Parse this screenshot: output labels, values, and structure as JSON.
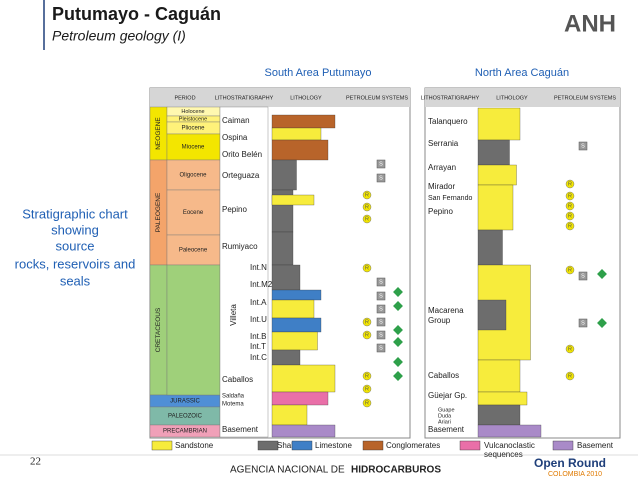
{
  "header": {
    "title": "Putumayo - Caguán",
    "subtitle": "Petroleum geology (I)",
    "logo": "ANH"
  },
  "side_note": [
    "Stratigraphic chart",
    "showing",
    "source",
    "rocks, reservoirs and",
    "seals"
  ],
  "south": {
    "title": "South Area Putumayo",
    "columns": [
      "PERIOD",
      "LITHOSTRATIGRAPHY",
      "LITHOLOGY",
      "PETROLEUM SYSTEMS"
    ],
    "eras": [
      "NEOGENE",
      "PALEOGENE",
      "CRETACEOUS",
      "JURASSIC",
      "PALEOZOIC",
      "PRECAMBRIAN"
    ],
    "epochs": [
      "Holocene",
      "Pleistocene",
      "Pliocene",
      "Miocene",
      "Oligocene",
      "Eocene",
      "Paleocene"
    ],
    "formations": [
      "Caiman",
      "Ospina",
      "Orito Belén",
      "Orteguaza",
      "Pepino",
      "Rumiyaco",
      "Int.N",
      "Int.M2",
      "Int.A",
      "Int.U",
      "Int.B",
      "Int.T",
      "Int.C",
      "Caballos",
      "Saldaña",
      "Motema",
      "Basement"
    ],
    "group": "Villeta",
    "markers": [
      "S",
      "S",
      "R",
      "R",
      "R",
      "R",
      "S",
      "S",
      "S",
      "R",
      "S",
      "R",
      "S",
      "S",
      "R",
      "R",
      "R"
    ]
  },
  "north": {
    "title": "North Area Caguán",
    "columns": [
      "LITHOSTRATIGRAPHY",
      "LITHOLOGY",
      "PETROLEUM SYSTEMS"
    ],
    "formations": [
      "Talanquero",
      "Serrania",
      "Arrayan",
      "Mirador",
      "San Fernando",
      "Pepino",
      "Macarena",
      "Group",
      "Caballos",
      "Güejar Gp.",
      "Guape",
      "Duda",
      "Ariari",
      "Basement"
    ],
    "markers": [
      "S",
      "R",
      "R",
      "R",
      "R",
      "R",
      "R",
      "S",
      "S",
      "R",
      "R"
    ]
  },
  "legend": [
    "Sandstone",
    "Shale",
    "Limestone",
    "Conglomerates",
    "Vulcanoclastic",
    "sequences",
    "Basement"
  ],
  "footer": {
    "page": "22",
    "agency": "AGENCIA NACIONAL DE",
    "agency_bold": "HIDROCARBUROS",
    "brand": "Open Round",
    "brand_sub": "COLOMBIA 2010"
  }
}
